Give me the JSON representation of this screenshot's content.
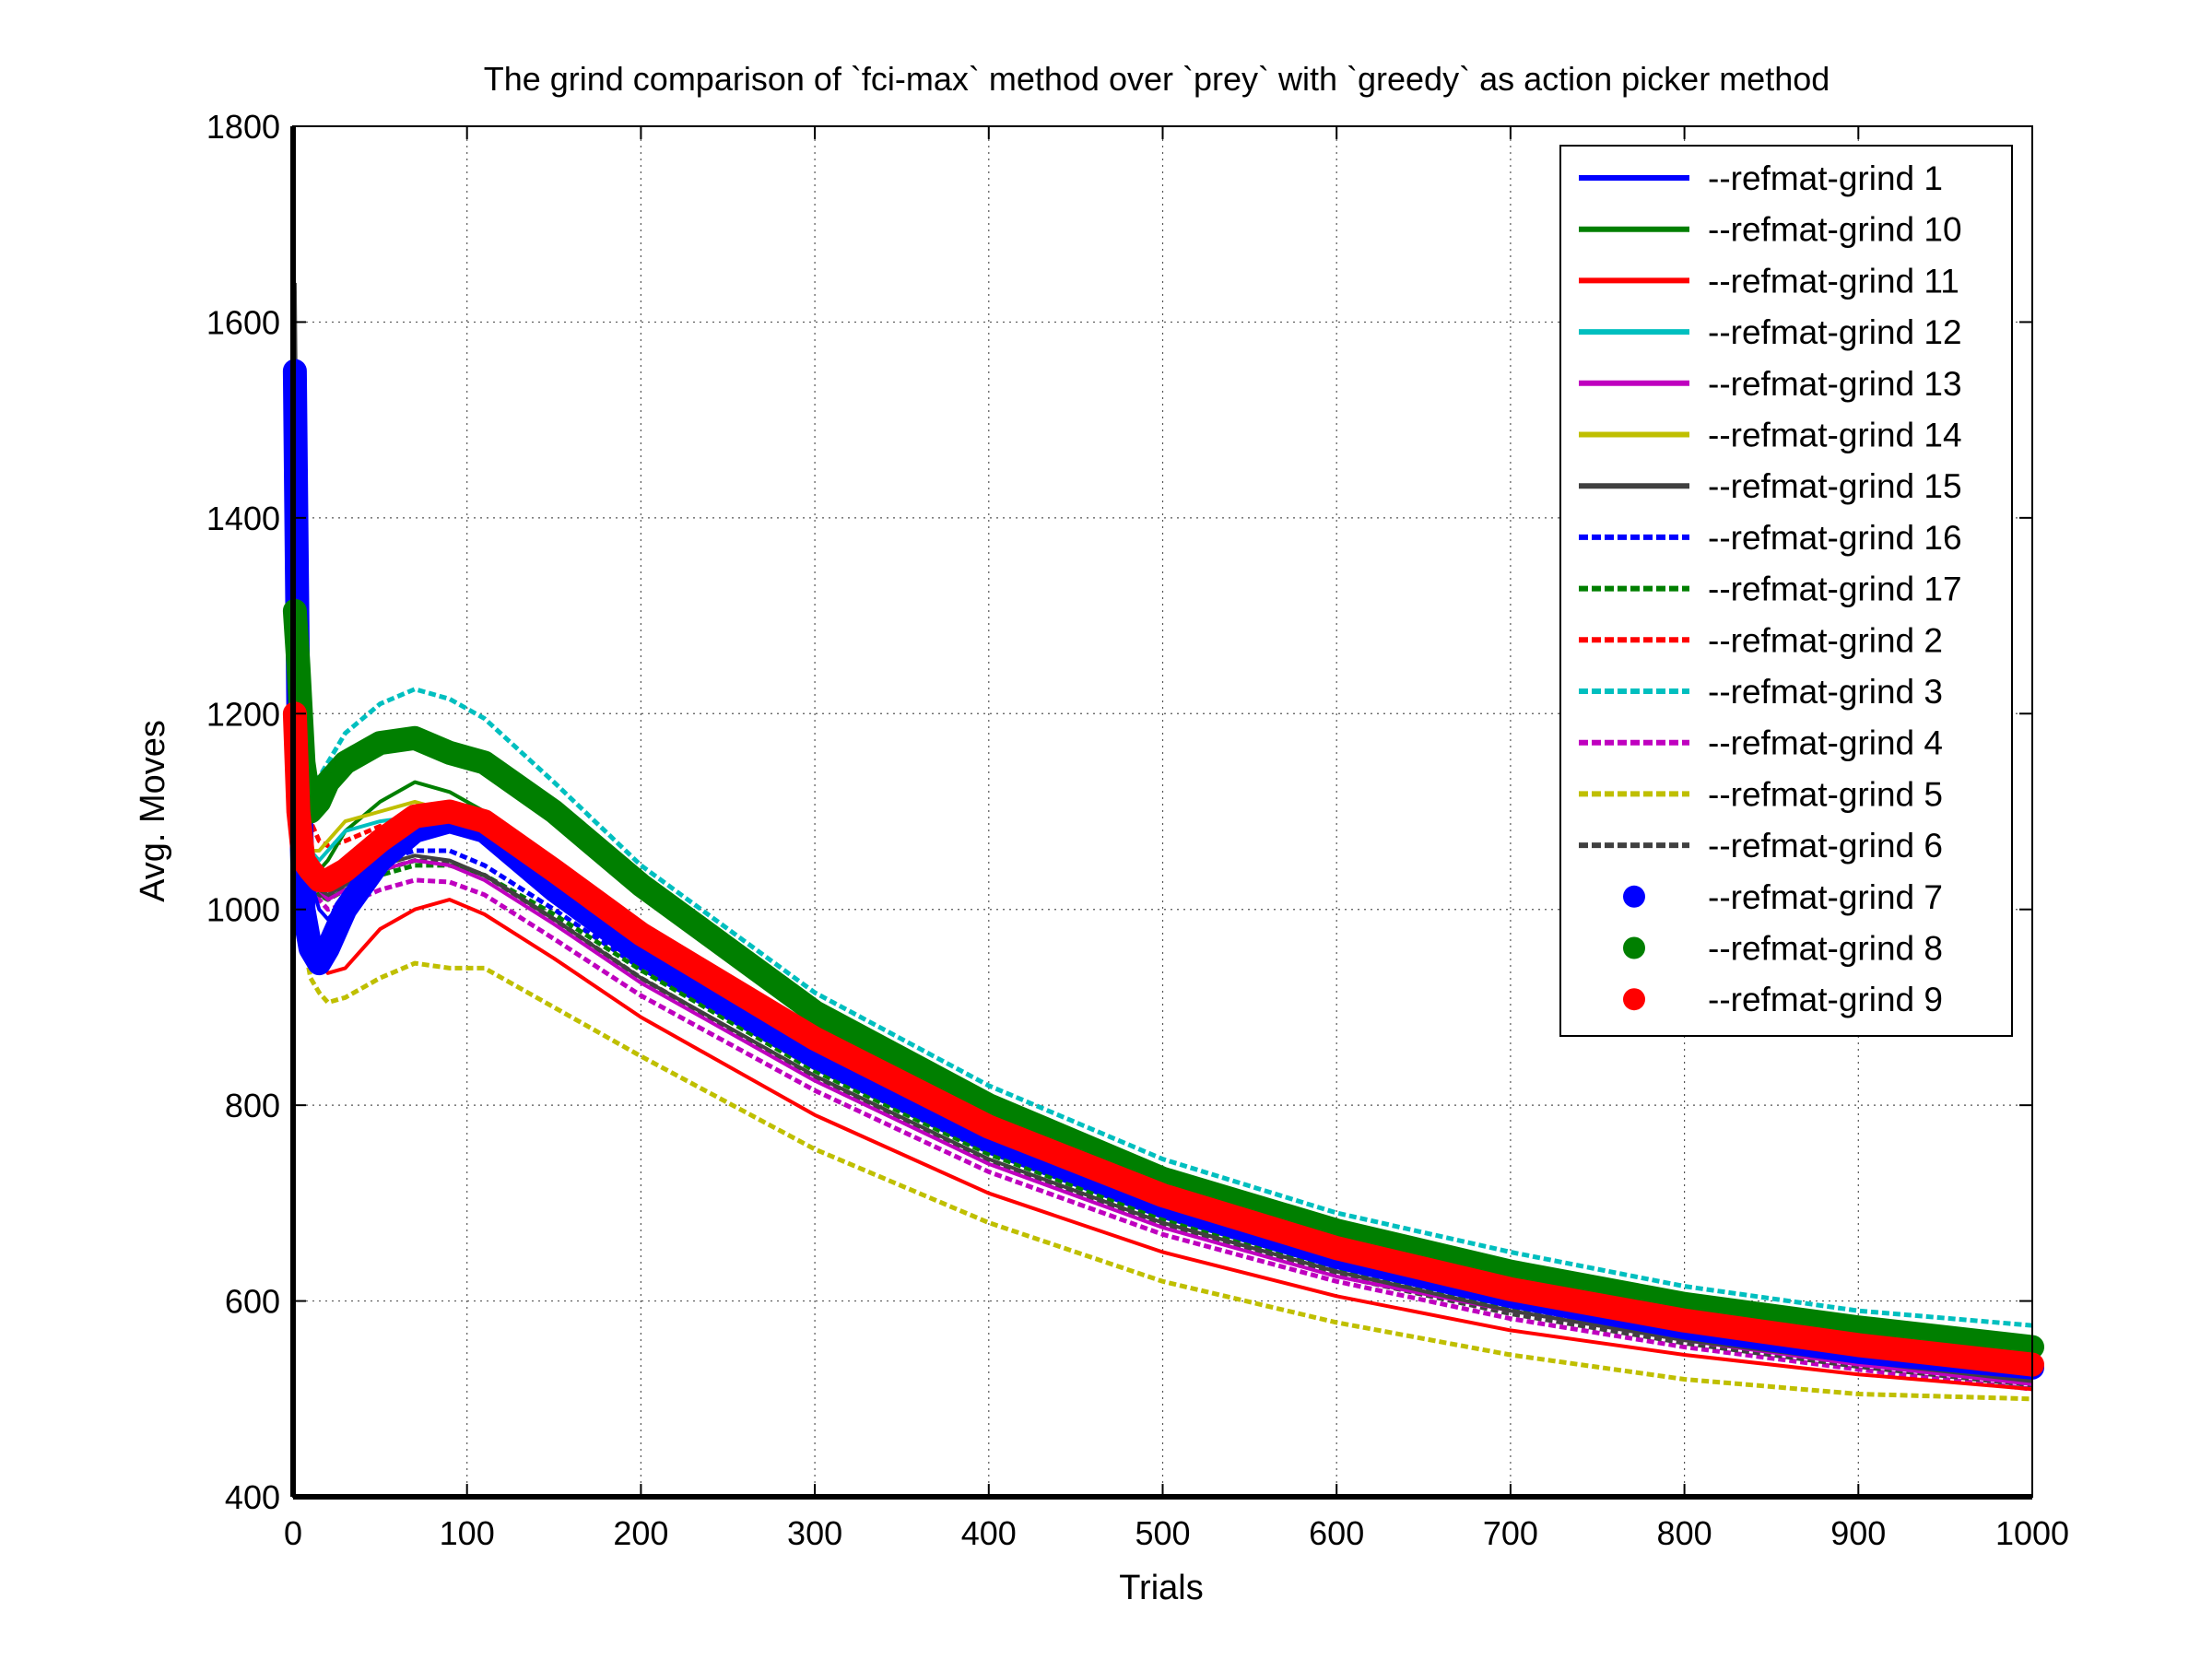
{
  "chart_data": {
    "type": "line",
    "title": "The grind comparison of `fci-max` method over `prey` with `greedy` as action picker method",
    "xlabel": "Trials",
    "ylabel": "Avg. Moves",
    "xlim": [
      0,
      1000
    ],
    "ylim": [
      400,
      1800
    ],
    "xticks": [
      0,
      100,
      200,
      300,
      400,
      500,
      600,
      700,
      800,
      900,
      1000
    ],
    "yticks": [
      400,
      600,
      800,
      1000,
      1200,
      1400,
      1600,
      1800
    ],
    "grid": true,
    "legend_position": "top-right",
    "series": [
      {
        "name": "--refmat-grind 1",
        "color": "#0000ff",
        "style": "solid",
        "x": [
          1,
          3,
          6,
          10,
          15,
          20,
          30,
          50,
          70,
          90,
          110,
          150,
          200,
          300,
          400,
          500,
          600,
          700,
          800,
          900,
          1000
        ],
        "y": [
          1500,
          1240,
          1080,
          1030,
          1000,
          990,
          1010,
          1060,
          1090,
          1100,
          1090,
          1020,
          950,
          845,
          760,
          690,
          640,
          600,
          570,
          545,
          525
        ]
      },
      {
        "name": "--refmat-grind 10",
        "color": "#007f00",
        "style": "solid",
        "x": [
          1,
          3,
          6,
          10,
          15,
          20,
          30,
          50,
          70,
          90,
          110,
          150,
          200,
          300,
          400,
          500,
          600,
          700,
          800,
          900,
          1000
        ],
        "y": [
          1300,
          1230,
          1120,
          1060,
          1040,
          1050,
          1080,
          1110,
          1130,
          1120,
          1100,
          1040,
          985,
          880,
          795,
          720,
          665,
          625,
          595,
          570,
          550
        ]
      },
      {
        "name": "--refmat-grind 11",
        "color": "#ff0000",
        "style": "solid",
        "x": [
          1,
          3,
          6,
          10,
          15,
          20,
          30,
          50,
          70,
          90,
          110,
          150,
          200,
          300,
          400,
          500,
          600,
          700,
          800,
          900,
          1000
        ],
        "y": [
          1600,
          1200,
          1050,
          990,
          950,
          935,
          940,
          980,
          1000,
          1010,
          995,
          950,
          890,
          790,
          710,
          650,
          605,
          570,
          545,
          525,
          510
        ]
      },
      {
        "name": "--refmat-grind 12",
        "color": "#00bfbf",
        "style": "solid",
        "x": [
          1,
          3,
          6,
          10,
          15,
          20,
          30,
          50,
          70,
          90,
          110,
          150,
          200,
          300,
          400,
          500,
          600,
          700,
          800,
          900,
          1000
        ],
        "y": [
          1400,
          1220,
          1100,
          1060,
          1050,
          1060,
          1080,
          1090,
          1095,
          1090,
          1080,
          1035,
          970,
          860,
          775,
          705,
          650,
          610,
          580,
          555,
          535
        ]
      },
      {
        "name": "--refmat-grind 13",
        "color": "#bf00bf",
        "style": "solid",
        "x": [
          1,
          3,
          6,
          10,
          15,
          20,
          30,
          50,
          70,
          90,
          110,
          150,
          200,
          300,
          400,
          500,
          600,
          700,
          800,
          900,
          1000
        ],
        "y": [
          1450,
          1200,
          1080,
          1040,
          1020,
          1010,
          1020,
          1040,
          1050,
          1045,
          1030,
          985,
          925,
          825,
          740,
          675,
          625,
          590,
          560,
          535,
          515
        ]
      },
      {
        "name": "--refmat-grind 14",
        "color": "#bfbf00",
        "style": "solid",
        "x": [
          1,
          3,
          6,
          10,
          15,
          20,
          30,
          50,
          70,
          90,
          110,
          150,
          200,
          300,
          400,
          500,
          600,
          700,
          800,
          900,
          1000
        ],
        "y": [
          1350,
          1180,
          1090,
          1060,
          1060,
          1070,
          1090,
          1100,
          1110,
          1100,
          1080,
          1030,
          965,
          855,
          770,
          700,
          645,
          605,
          575,
          550,
          530
        ]
      },
      {
        "name": "--refmat-grind 15",
        "color": "#404040",
        "style": "solid",
        "x": [
          1,
          3,
          6,
          10,
          15,
          20,
          30,
          50,
          70,
          90,
          110,
          150,
          200,
          300,
          400,
          500,
          600,
          700,
          800,
          900,
          1000
        ],
        "y": [
          1640,
          1250,
          1090,
          1040,
          1020,
          1015,
          1025,
          1045,
          1055,
          1050,
          1035,
          990,
          930,
          830,
          745,
          680,
          630,
          590,
          560,
          538,
          518
        ]
      },
      {
        "name": "--refmat-grind 16",
        "color": "#0000ff",
        "style": "dashed",
        "x": [
          1,
          3,
          6,
          10,
          15,
          20,
          30,
          50,
          70,
          90,
          110,
          150,
          200,
          300,
          400,
          500,
          600,
          700,
          800,
          900,
          1000
        ],
        "y": [
          1420,
          1210,
          1080,
          1040,
          1025,
          1020,
          1030,
          1050,
          1060,
          1060,
          1045,
          1000,
          940,
          838,
          752,
          686,
          635,
          595,
          565,
          540,
          520
        ]
      },
      {
        "name": "--refmat-grind 17",
        "color": "#007f00",
        "style": "dashed",
        "x": [
          1,
          3,
          6,
          10,
          15,
          20,
          30,
          50,
          70,
          90,
          110,
          150,
          200,
          300,
          400,
          500,
          600,
          700,
          800,
          900,
          1000
        ],
        "y": [
          1380,
          1200,
          1070,
          1030,
          1015,
          1010,
          1020,
          1035,
          1045,
          1045,
          1035,
          995,
          938,
          835,
          750,
          684,
          633,
          593,
          563,
          538,
          518
        ]
      },
      {
        "name": "--refmat-grind 2",
        "color": "#ff0000",
        "style": "dashed",
        "x": [
          1,
          3,
          6,
          10,
          15,
          20,
          30,
          50,
          70,
          90,
          110,
          150,
          200,
          300,
          400,
          500,
          600,
          700,
          800,
          900,
          1000
        ],
        "y": [
          1560,
          1300,
          1150,
          1090,
          1070,
          1065,
          1070,
          1085,
          1090,
          1085,
          1070,
          1020,
          955,
          848,
          760,
          690,
          638,
          598,
          568,
          543,
          522
        ]
      },
      {
        "name": "--refmat-grind 3",
        "color": "#00bfbf",
        "style": "dashed",
        "x": [
          1,
          3,
          6,
          10,
          15,
          20,
          30,
          50,
          70,
          90,
          110,
          150,
          200,
          300,
          400,
          500,
          600,
          700,
          800,
          900,
          1000
        ],
        "y": [
          1260,
          1200,
          1150,
          1130,
          1135,
          1150,
          1180,
          1210,
          1225,
          1215,
          1195,
          1130,
          1045,
          915,
          820,
          745,
          690,
          650,
          615,
          590,
          575
        ]
      },
      {
        "name": "--refmat-grind 4",
        "color": "#bf00bf",
        "style": "dashed",
        "x": [
          1,
          3,
          6,
          10,
          15,
          20,
          30,
          50,
          70,
          90,
          110,
          150,
          200,
          300,
          400,
          500,
          600,
          700,
          800,
          900,
          1000
        ],
        "y": [
          1350,
          1180,
          1070,
          1030,
          1010,
          1000,
          1005,
          1020,
          1030,
          1028,
          1015,
          970,
          912,
          815,
          732,
          668,
          620,
          582,
          553,
          530,
          510
        ]
      },
      {
        "name": "--refmat-grind 5",
        "color": "#bfbf00",
        "style": "dashed",
        "x": [
          1,
          3,
          6,
          10,
          15,
          20,
          30,
          50,
          70,
          90,
          110,
          150,
          200,
          300,
          400,
          500,
          600,
          700,
          800,
          900,
          1000
        ],
        "y": [
          1200,
          1050,
          970,
          930,
          915,
          905,
          910,
          930,
          945,
          940,
          940,
          900,
          850,
          755,
          680,
          620,
          578,
          545,
          520,
          505,
          500
        ]
      },
      {
        "name": "--refmat-grind 6",
        "color": "#404040",
        "style": "dashed",
        "x": [
          1,
          3,
          6,
          10,
          15,
          20,
          30,
          50,
          70,
          90,
          110,
          150,
          200,
          300,
          400,
          500,
          600,
          700,
          800,
          900,
          1000
        ],
        "y": [
          1420,
          1200,
          1070,
          1030,
          1015,
          1012,
          1022,
          1040,
          1050,
          1048,
          1035,
          990,
          930,
          828,
          742,
          676,
          626,
          587,
          557,
          533,
          514
        ]
      },
      {
        "name": "--refmat-grind 7",
        "color": "#0000ff",
        "style": "dots",
        "x": [
          1,
          3,
          6,
          10,
          15,
          20,
          30,
          50,
          70,
          90,
          110,
          150,
          200,
          300,
          400,
          500,
          600,
          700,
          800,
          900,
          1000
        ],
        "y": [
          1550,
          1200,
          1000,
          960,
          945,
          960,
          1000,
          1050,
          1080,
          1090,
          1080,
          1020,
          955,
          850,
          765,
          698,
          645,
          605,
          573,
          548,
          532
        ]
      },
      {
        "name": "--refmat-grind 8",
        "color": "#007f00",
        "style": "dots",
        "x": [
          1,
          3,
          6,
          10,
          15,
          20,
          30,
          50,
          70,
          90,
          110,
          150,
          200,
          300,
          400,
          500,
          600,
          700,
          800,
          900,
          1000
        ],
        "y": [
          1305,
          1250,
          1150,
          1100,
          1110,
          1130,
          1150,
          1170,
          1175,
          1160,
          1150,
          1100,
          1025,
          895,
          800,
          725,
          672,
          630,
          597,
          573,
          553
        ]
      },
      {
        "name": "--refmat-grind 9",
        "color": "#ff0000",
        "style": "dots",
        "x": [
          1,
          3,
          6,
          10,
          15,
          20,
          30,
          50,
          70,
          90,
          110,
          150,
          200,
          300,
          400,
          500,
          600,
          700,
          800,
          900,
          1000
        ],
        "y": [
          1200,
          1100,
          1050,
          1040,
          1030,
          1030,
          1040,
          1070,
          1095,
          1100,
          1090,
          1040,
          975,
          868,
          778,
          708,
          654,
          612,
          580,
          555,
          535
        ]
      }
    ]
  }
}
